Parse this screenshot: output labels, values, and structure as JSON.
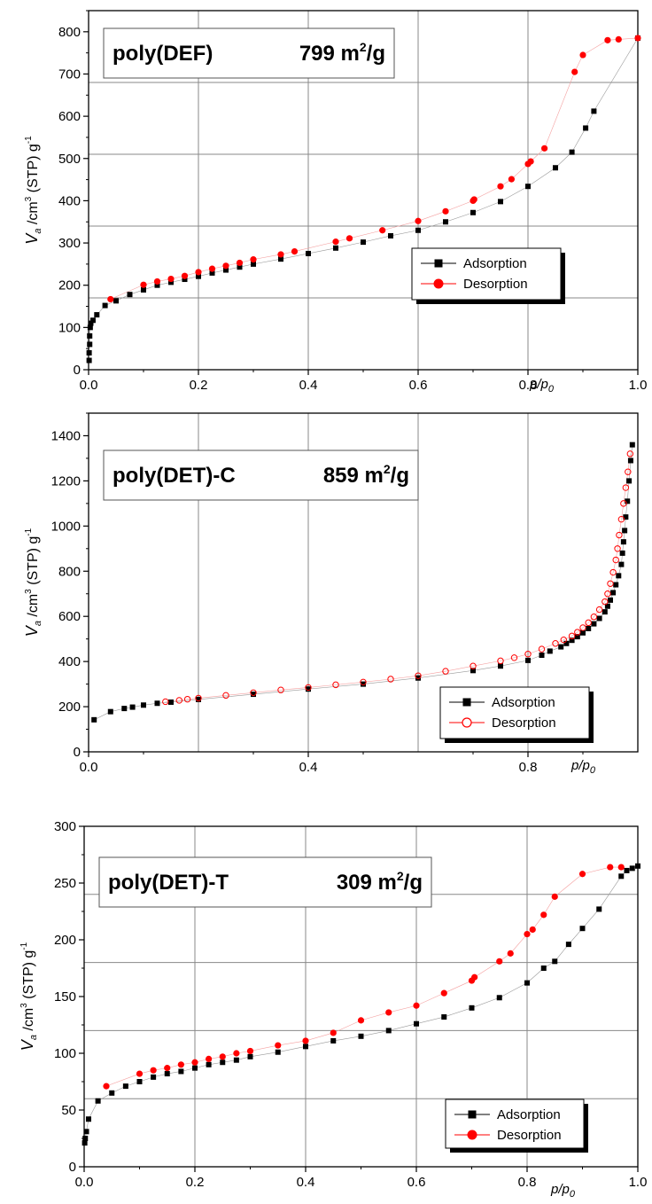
{
  "chart_data": [
    {
      "type": "scatter",
      "title": "poly(DEF)",
      "area_value": "799 m",
      "area_exp": "2",
      "area_unit": "/g",
      "ylabel_main": "V",
      "ylabel_sub": "a",
      "ylabel_mid": " /cm",
      "ylabel_exp": "3",
      "ylabel_tail": " (STP) g",
      "ylabel_exp2": "-1",
      "xlabel_main": "p/p",
      "xlabel_sub": "0",
      "xlim": [
        0,
        1.0
      ],
      "ylim": [
        0,
        850
      ],
      "x_ticks": [
        0.0,
        0.2,
        0.4,
        0.6,
        0.8,
        1.0
      ],
      "x_tick_labels": [
        "0.0",
        "0.2",
        "0.4",
        "0.6",
        "0.8",
        "1.0"
      ],
      "y_ticks": [
        0,
        100,
        200,
        300,
        400,
        500,
        600,
        700,
        800
      ],
      "grid_x": [
        0.2,
        0.4,
        0.6,
        0.8
      ],
      "grid_y": [
        170,
        340,
        510,
        680
      ],
      "legend": [
        "Adsorption",
        "Desorption"
      ],
      "series": [
        {
          "name": "Adsorption",
          "color": "#000000",
          "marker": "square",
          "x": [
            0.001,
            0.001,
            0.002,
            0.002,
            0.003,
            0.004,
            0.008,
            0.015,
            0.03,
            0.05,
            0.075,
            0.1,
            0.125,
            0.15,
            0.175,
            0.2,
            0.225,
            0.25,
            0.275,
            0.3,
            0.35,
            0.4,
            0.45,
            0.5,
            0.55,
            0.6,
            0.65,
            0.7,
            0.75,
            0.8,
            0.85,
            0.88,
            0.905,
            0.92,
            1.0
          ],
          "y": [
            22,
            40,
            60,
            80,
            100,
            110,
            117,
            130,
            152,
            163,
            178,
            189,
            200,
            207,
            214,
            221,
            229,
            236,
            243,
            250,
            262,
            275,
            288,
            302,
            317,
            330,
            350,
            372,
            398,
            434,
            478,
            515,
            572,
            612,
            785
          ]
        },
        {
          "name": "Desorption",
          "color": "#ff0000",
          "marker": "circle",
          "x": [
            0.04,
            0.1,
            0.125,
            0.15,
            0.175,
            0.2,
            0.225,
            0.25,
            0.275,
            0.3,
            0.35,
            0.375,
            0.45,
            0.475,
            0.535,
            0.6,
            0.65,
            0.7,
            0.702,
            0.75,
            0.77,
            0.8,
            0.805,
            0.83,
            0.885,
            0.9,
            0.945,
            0.965,
            1.0
          ],
          "y": [
            167,
            201,
            209,
            215,
            222,
            231,
            239,
            246,
            253,
            261,
            273,
            280,
            303,
            311,
            330,
            352,
            375,
            400,
            403,
            434,
            451,
            487,
            493,
            524,
            705,
            745,
            780,
            782,
            785
          ]
        }
      ]
    },
    {
      "type": "scatter",
      "title": "poly(DET)-C",
      "area_value": "859 m",
      "area_exp": "2",
      "area_unit": "/g",
      "ylabel_main": "V",
      "ylabel_sub": "a",
      "ylabel_mid": " /cm",
      "ylabel_exp": "3",
      "ylabel_tail": " (STP) g",
      "ylabel_exp2": "-1",
      "xlabel_main": "p/p",
      "xlabel_sub": "0",
      "xlim": [
        0,
        1.0
      ],
      "ylim": [
        0,
        1500
      ],
      "x_ticks": [
        0.0,
        0.4,
        0.8
      ],
      "x_tick_labels": [
        "0.0",
        "0.4",
        "0.8"
      ],
      "y_ticks": [
        0,
        200,
        400,
        600,
        800,
        1000,
        1200,
        1400
      ],
      "grid_x": [
        0.2,
        0.4,
        0.6,
        0.8
      ],
      "grid_y": [],
      "legend": [
        "Adsorption",
        "Desorption"
      ],
      "series": [
        {
          "name": "Adsorption",
          "color": "#000000",
          "marker": "square",
          "x": [
            0.01,
            0.04,
            0.065,
            0.08,
            0.1,
            0.125,
            0.15,
            0.2,
            0.3,
            0.4,
            0.5,
            0.6,
            0.7,
            0.75,
            0.8,
            0.825,
            0.84,
            0.86,
            0.87,
            0.88,
            0.89,
            0.9,
            0.91,
            0.92,
            0.93,
            0.94,
            0.945,
            0.95,
            0.955,
            0.96,
            0.965,
            0.97,
            0.972,
            0.974,
            0.976,
            0.978,
            0.981,
            0.984,
            0.987,
            0.99
          ],
          "y": [
            142,
            178,
            192,
            198,
            207,
            215,
            220,
            232,
            255,
            278,
            300,
            327,
            360,
            380,
            405,
            428,
            446,
            465,
            480,
            494,
            510,
            527,
            546,
            567,
            591,
            620,
            645,
            672,
            705,
            740,
            780,
            830,
            880,
            930,
            980,
            1040,
            1110,
            1200,
            1290,
            1360
          ]
        },
        {
          "name": "Desorption",
          "color": "#ff0000",
          "marker": "circle-open",
          "x": [
            0.14,
            0.165,
            0.18,
            0.2,
            0.25,
            0.3,
            0.35,
            0.4,
            0.45,
            0.5,
            0.55,
            0.6,
            0.65,
            0.7,
            0.75,
            0.775,
            0.8,
            0.825,
            0.85,
            0.865,
            0.88,
            0.89,
            0.9,
            0.91,
            0.92,
            0.93,
            0.94,
            0.945,
            0.95,
            0.955,
            0.96,
            0.963,
            0.966,
            0.97,
            0.974,
            0.978,
            0.982,
            0.986
          ],
          "y": [
            222,
            228,
            233,
            238,
            250,
            262,
            274,
            285,
            297,
            309,
            322,
            337,
            357,
            380,
            403,
            417,
            433,
            455,
            480,
            496,
            513,
            530,
            550,
            572,
            598,
            630,
            665,
            700,
            745,
            795,
            850,
            900,
            960,
            1030,
            1100,
            1170,
            1240,
            1320
          ]
        }
      ]
    },
    {
      "type": "scatter",
      "title": "poly(DET)-T",
      "area_value": "309 m",
      "area_exp": "2",
      "area_unit": "/g",
      "ylabel_main": "V",
      "ylabel_sub": "a",
      "ylabel_mid": " /cm",
      "ylabel_exp": "3",
      "ylabel_tail": " (STP) g",
      "ylabel_exp2": "-1",
      "xlabel_main": "p/p",
      "xlabel_sub": "0",
      "xlim": [
        0,
        1.0
      ],
      "ylim": [
        0,
        300
      ],
      "x_ticks": [
        0.0,
        0.2,
        0.4,
        0.6,
        0.8,
        1.0
      ],
      "x_tick_labels": [
        "0.0",
        "0.2",
        "0.4",
        "0.6",
        "0.8",
        "1.0"
      ],
      "y_ticks": [
        0,
        50,
        100,
        150,
        200,
        250,
        300
      ],
      "grid_x": [
        0.2,
        0.4,
        0.6,
        0.8
      ],
      "grid_y": [
        60,
        120,
        180,
        240
      ],
      "legend": [
        "Adsorption",
        "Desorption"
      ],
      "series": [
        {
          "name": "Adsorption",
          "color": "#000000",
          "marker": "square",
          "x": [
            0.001,
            0.002,
            0.004,
            0.008,
            0.025,
            0.05,
            0.075,
            0.1,
            0.125,
            0.15,
            0.175,
            0.2,
            0.225,
            0.25,
            0.275,
            0.3,
            0.35,
            0.4,
            0.45,
            0.5,
            0.55,
            0.6,
            0.65,
            0.7,
            0.75,
            0.8,
            0.83,
            0.85,
            0.875,
            0.9,
            0.93,
            0.97,
            0.98,
            0.99,
            1.0
          ],
          "y": [
            21,
            25,
            31,
            42,
            58,
            65,
            71,
            75,
            79,
            82,
            84,
            87,
            90,
            92,
            94,
            97,
            101,
            106,
            111,
            115,
            120,
            126,
            132,
            140,
            149,
            162,
            175,
            181,
            196,
            210,
            227,
            256,
            261,
            263,
            265
          ]
        },
        {
          "name": "Desorption",
          "color": "#ff0000",
          "marker": "circle",
          "x": [
            0.04,
            0.1,
            0.125,
            0.15,
            0.175,
            0.2,
            0.225,
            0.25,
            0.275,
            0.3,
            0.35,
            0.4,
            0.45,
            0.5,
            0.55,
            0.6,
            0.65,
            0.7,
            0.705,
            0.75,
            0.77,
            0.8,
            0.81,
            0.83,
            0.85,
            0.9,
            0.95,
            0.97
          ],
          "y": [
            71,
            82,
            85,
            87,
            90,
            92,
            95,
            97,
            100,
            102,
            107,
            111,
            118,
            129,
            136,
            142,
            153,
            164,
            167,
            181,
            188,
            205,
            209,
            222,
            238,
            258,
            264,
            264
          ]
        }
      ]
    }
  ]
}
